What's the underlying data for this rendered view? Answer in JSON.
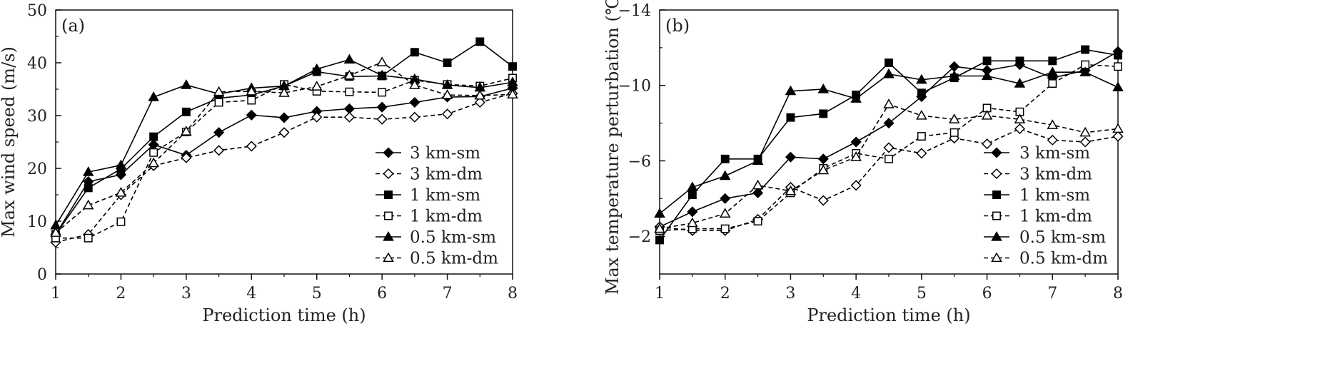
{
  "chart_data": [
    {
      "type": "line",
      "panel_label": "(a)",
      "xlabel": "Prediction time (h)",
      "ylabel": "Max wind speed (m/s)",
      "xlim": [
        1,
        8
      ],
      "ylim": [
        0,
        50
      ],
      "xticks": [
        "1",
        "2",
        "3",
        "4",
        "5",
        "6",
        "7",
        "8"
      ],
      "yticks": [
        "0",
        "10",
        "20",
        "30",
        "40",
        "50"
      ],
      "x": [
        1,
        1.5,
        2,
        2.5,
        3,
        3.5,
        4,
        4.5,
        5,
        5.5,
        6,
        6.5,
        7,
        7.5,
        8
      ],
      "series": [
        {
          "name": "3 km-sm",
          "marker": "diamond",
          "fill": "filled",
          "dash": "solid",
          "values": [
            7.5,
            17.5,
            18.8,
            24.5,
            22.5,
            26.8,
            30.1,
            29.6,
            30.8,
            31.3,
            31.6,
            32.5,
            33.5,
            33.6,
            35.2
          ]
        },
        {
          "name": "3 km-dm",
          "marker": "diamond",
          "fill": "open",
          "dash": "dashed",
          "values": [
            6.0,
            7.5,
            15.0,
            20.5,
            22.0,
            23.4,
            24.2,
            26.8,
            29.7,
            29.7,
            29.3,
            29.7,
            30.3,
            32.5,
            34.2
          ]
        },
        {
          "name": "1 km-sm",
          "marker": "square",
          "fill": "filled",
          "dash": "solid",
          "values": [
            7.5,
            16.3,
            19.9,
            26.0,
            30.7,
            33.3,
            33.9,
            35.6,
            38.3,
            37.4,
            37.5,
            42.0,
            40.0,
            44.0,
            39.3
          ]
        },
        {
          "name": "1 km-dm",
          "marker": "square",
          "fill": "open",
          "dash": "dashed",
          "values": [
            6.8,
            6.8,
            9.9,
            23.0,
            26.9,
            32.5,
            32.9,
            35.9,
            34.6,
            34.5,
            34.4,
            36.7,
            35.9,
            35.6,
            37.1
          ]
        },
        {
          "name": "0.5 km-sm",
          "marker": "triangle",
          "fill": "filled",
          "dash": "solid",
          "values": [
            9.2,
            19.3,
            20.6,
            33.5,
            35.8,
            34.1,
            35.2,
            35.6,
            38.8,
            40.6,
            37.6,
            36.9,
            35.8,
            35.3,
            36.3
          ]
        },
        {
          "name": "0.5 km-dm",
          "marker": "triangle",
          "fill": "open",
          "dash": "dashed",
          "values": [
            7.8,
            13.0,
            15.4,
            21.0,
            27.0,
            34.5,
            34.6,
            34.3,
            35.5,
            37.6,
            40.1,
            35.8,
            33.9,
            33.8,
            34.0
          ]
        }
      ],
      "legend": [
        "3 km-sm",
        "3 km-dm",
        "1 km-sm",
        "1 km-dm",
        "0.5 km-sm",
        "0.5 km-dm"
      ],
      "legend_position": "bottom-right"
    },
    {
      "type": "line",
      "panel_label": "(b)",
      "xlabel": "Prediction time (h)",
      "ylabel": "Max temperature perturbation (℃)",
      "xlim": [
        1,
        8
      ],
      "ylim": [
        0,
        -14
      ],
      "xticks": [
        "1",
        "2",
        "3",
        "4",
        "5",
        "6",
        "7",
        "8"
      ],
      "yticks": [
        "-2",
        "-6",
        "-10",
        "-14"
      ],
      "x": [
        1,
        1.5,
        2,
        2.5,
        3,
        3.5,
        4,
        4.5,
        5,
        5.5,
        6,
        6.5,
        7,
        7.5,
        8
      ],
      "series": [
        {
          "name": "3 km-sm",
          "marker": "diamond",
          "fill": "filled",
          "dash": "solid",
          "values": [
            -2.5,
            -3.3,
            -4.0,
            -4.3,
            -6.2,
            -6.1,
            -7.0,
            -8.0,
            -9.4,
            -11.0,
            -10.8,
            -11.1,
            -10.4,
            -10.8,
            -11.8
          ]
        },
        {
          "name": "3 km-dm",
          "marker": "diamond",
          "fill": "open",
          "dash": "dashed",
          "values": [
            -2.5,
            -2.3,
            -2.3,
            -2.9,
            -4.6,
            -3.9,
            -4.7,
            -6.7,
            -6.4,
            -7.2,
            -6.9,
            -7.7,
            -7.1,
            -7.0,
            -7.3
          ]
        },
        {
          "name": "1 km-sm",
          "marker": "square",
          "fill": "filled",
          "dash": "solid",
          "values": [
            -1.8,
            -4.2,
            -6.1,
            -6.1,
            -8.3,
            -8.5,
            -9.5,
            -11.2,
            -9.6,
            -10.4,
            -11.3,
            -11.3,
            -11.3,
            -11.9,
            -11.6
          ]
        },
        {
          "name": "1 km-dm",
          "marker": "square",
          "fill": "open",
          "dash": "dashed",
          "values": [
            -2.3,
            -2.4,
            -2.4,
            -2.8,
            -4.3,
            -5.6,
            -6.4,
            -6.1,
            -7.3,
            -7.5,
            -8.8,
            -8.6,
            -10.1,
            -11.1,
            -11.0
          ]
        },
        {
          "name": "0.5 km-sm",
          "marker": "triangle",
          "fill": "filled",
          "dash": "solid",
          "values": [
            -3.2,
            -4.6,
            -5.2,
            -6.0,
            -9.7,
            -9.8,
            -9.3,
            -10.6,
            -10.3,
            -10.5,
            -10.5,
            -10.1,
            -10.7,
            -10.7,
            -9.9
          ]
        },
        {
          "name": "0.5 km-dm",
          "marker": "triangle",
          "fill": "open",
          "dash": "dashed",
          "values": [
            -2.4,
            -2.7,
            -3.2,
            -4.7,
            -4.4,
            -5.5,
            -6.2,
            -9.0,
            -8.4,
            -8.2,
            -8.4,
            -8.2,
            -7.9,
            -7.5,
            -7.7
          ]
        }
      ],
      "legend": [
        "3 km-sm",
        "3 km-dm",
        "1 km-sm",
        "1 km-dm",
        "0.5 km-sm",
        "0.5 km-dm"
      ],
      "legend_position": "bottom-right"
    }
  ]
}
